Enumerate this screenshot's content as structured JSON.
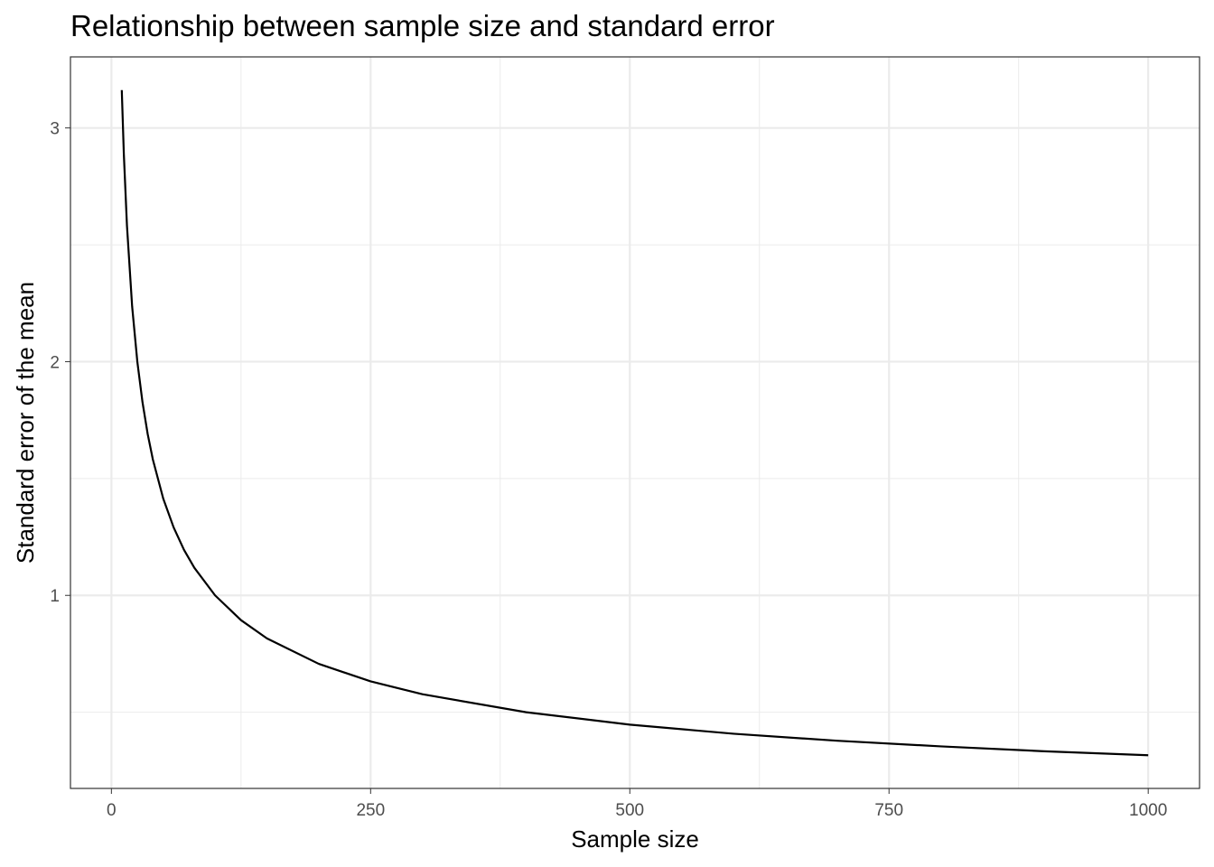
{
  "chart_data": {
    "type": "line",
    "title": "Relationship between sample size and standard error",
    "x_label": "Sample size",
    "y_label": "Standard error of the mean",
    "x": [
      10,
      12,
      15,
      20,
      25,
      30,
      35,
      40,
      50,
      60,
      70,
      80,
      100,
      125,
      150,
      200,
      250,
      300,
      400,
      500,
      600,
      700,
      800,
      900,
      1000
    ],
    "series": [
      {
        "color": "#000000",
        "values": [
          3.162,
          2.887,
          2.582,
          2.236,
          2.0,
          1.826,
          1.69,
          1.581,
          1.414,
          1.291,
          1.195,
          1.118,
          1.0,
          0.894,
          0.816,
          0.707,
          0.632,
          0.577,
          0.5,
          0.447,
          0.408,
          0.378,
          0.354,
          0.333,
          0.316
        ]
      }
    ],
    "xlim": [
      -39.5,
      1049.5
    ],
    "ylim": [
      0.174,
      3.304
    ],
    "xticks": [
      0,
      250,
      500,
      750,
      1000
    ],
    "yticks": [
      1,
      2,
      3
    ],
    "xminor": [
      125,
      375,
      625,
      875
    ],
    "yminor": [
      0.5,
      1.5,
      2.5
    ],
    "grid": true
  }
}
